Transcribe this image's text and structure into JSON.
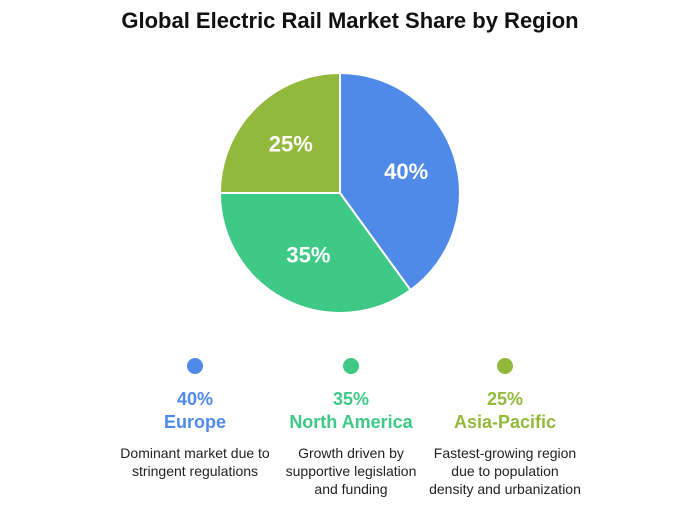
{
  "chart_data": {
    "type": "pie",
    "title": "Global Electric Rail Market Share by Region",
    "series": [
      {
        "name": "Europe",
        "value": 40,
        "label": "40%",
        "color": "#4f8ae8",
        "description": "Dominant market due to stringent regulations"
      },
      {
        "name": "North America",
        "value": 35,
        "label": "35%",
        "color": "#3ec986",
        "description": "Growth driven by supportive legislation and funding"
      },
      {
        "name": "Asia-Pacific",
        "value": 25,
        "label": "25%",
        "color": "#93b93c",
        "description": "Fastest-growing region due to population density and urbanization"
      }
    ],
    "legend_placement": "bottom"
  }
}
